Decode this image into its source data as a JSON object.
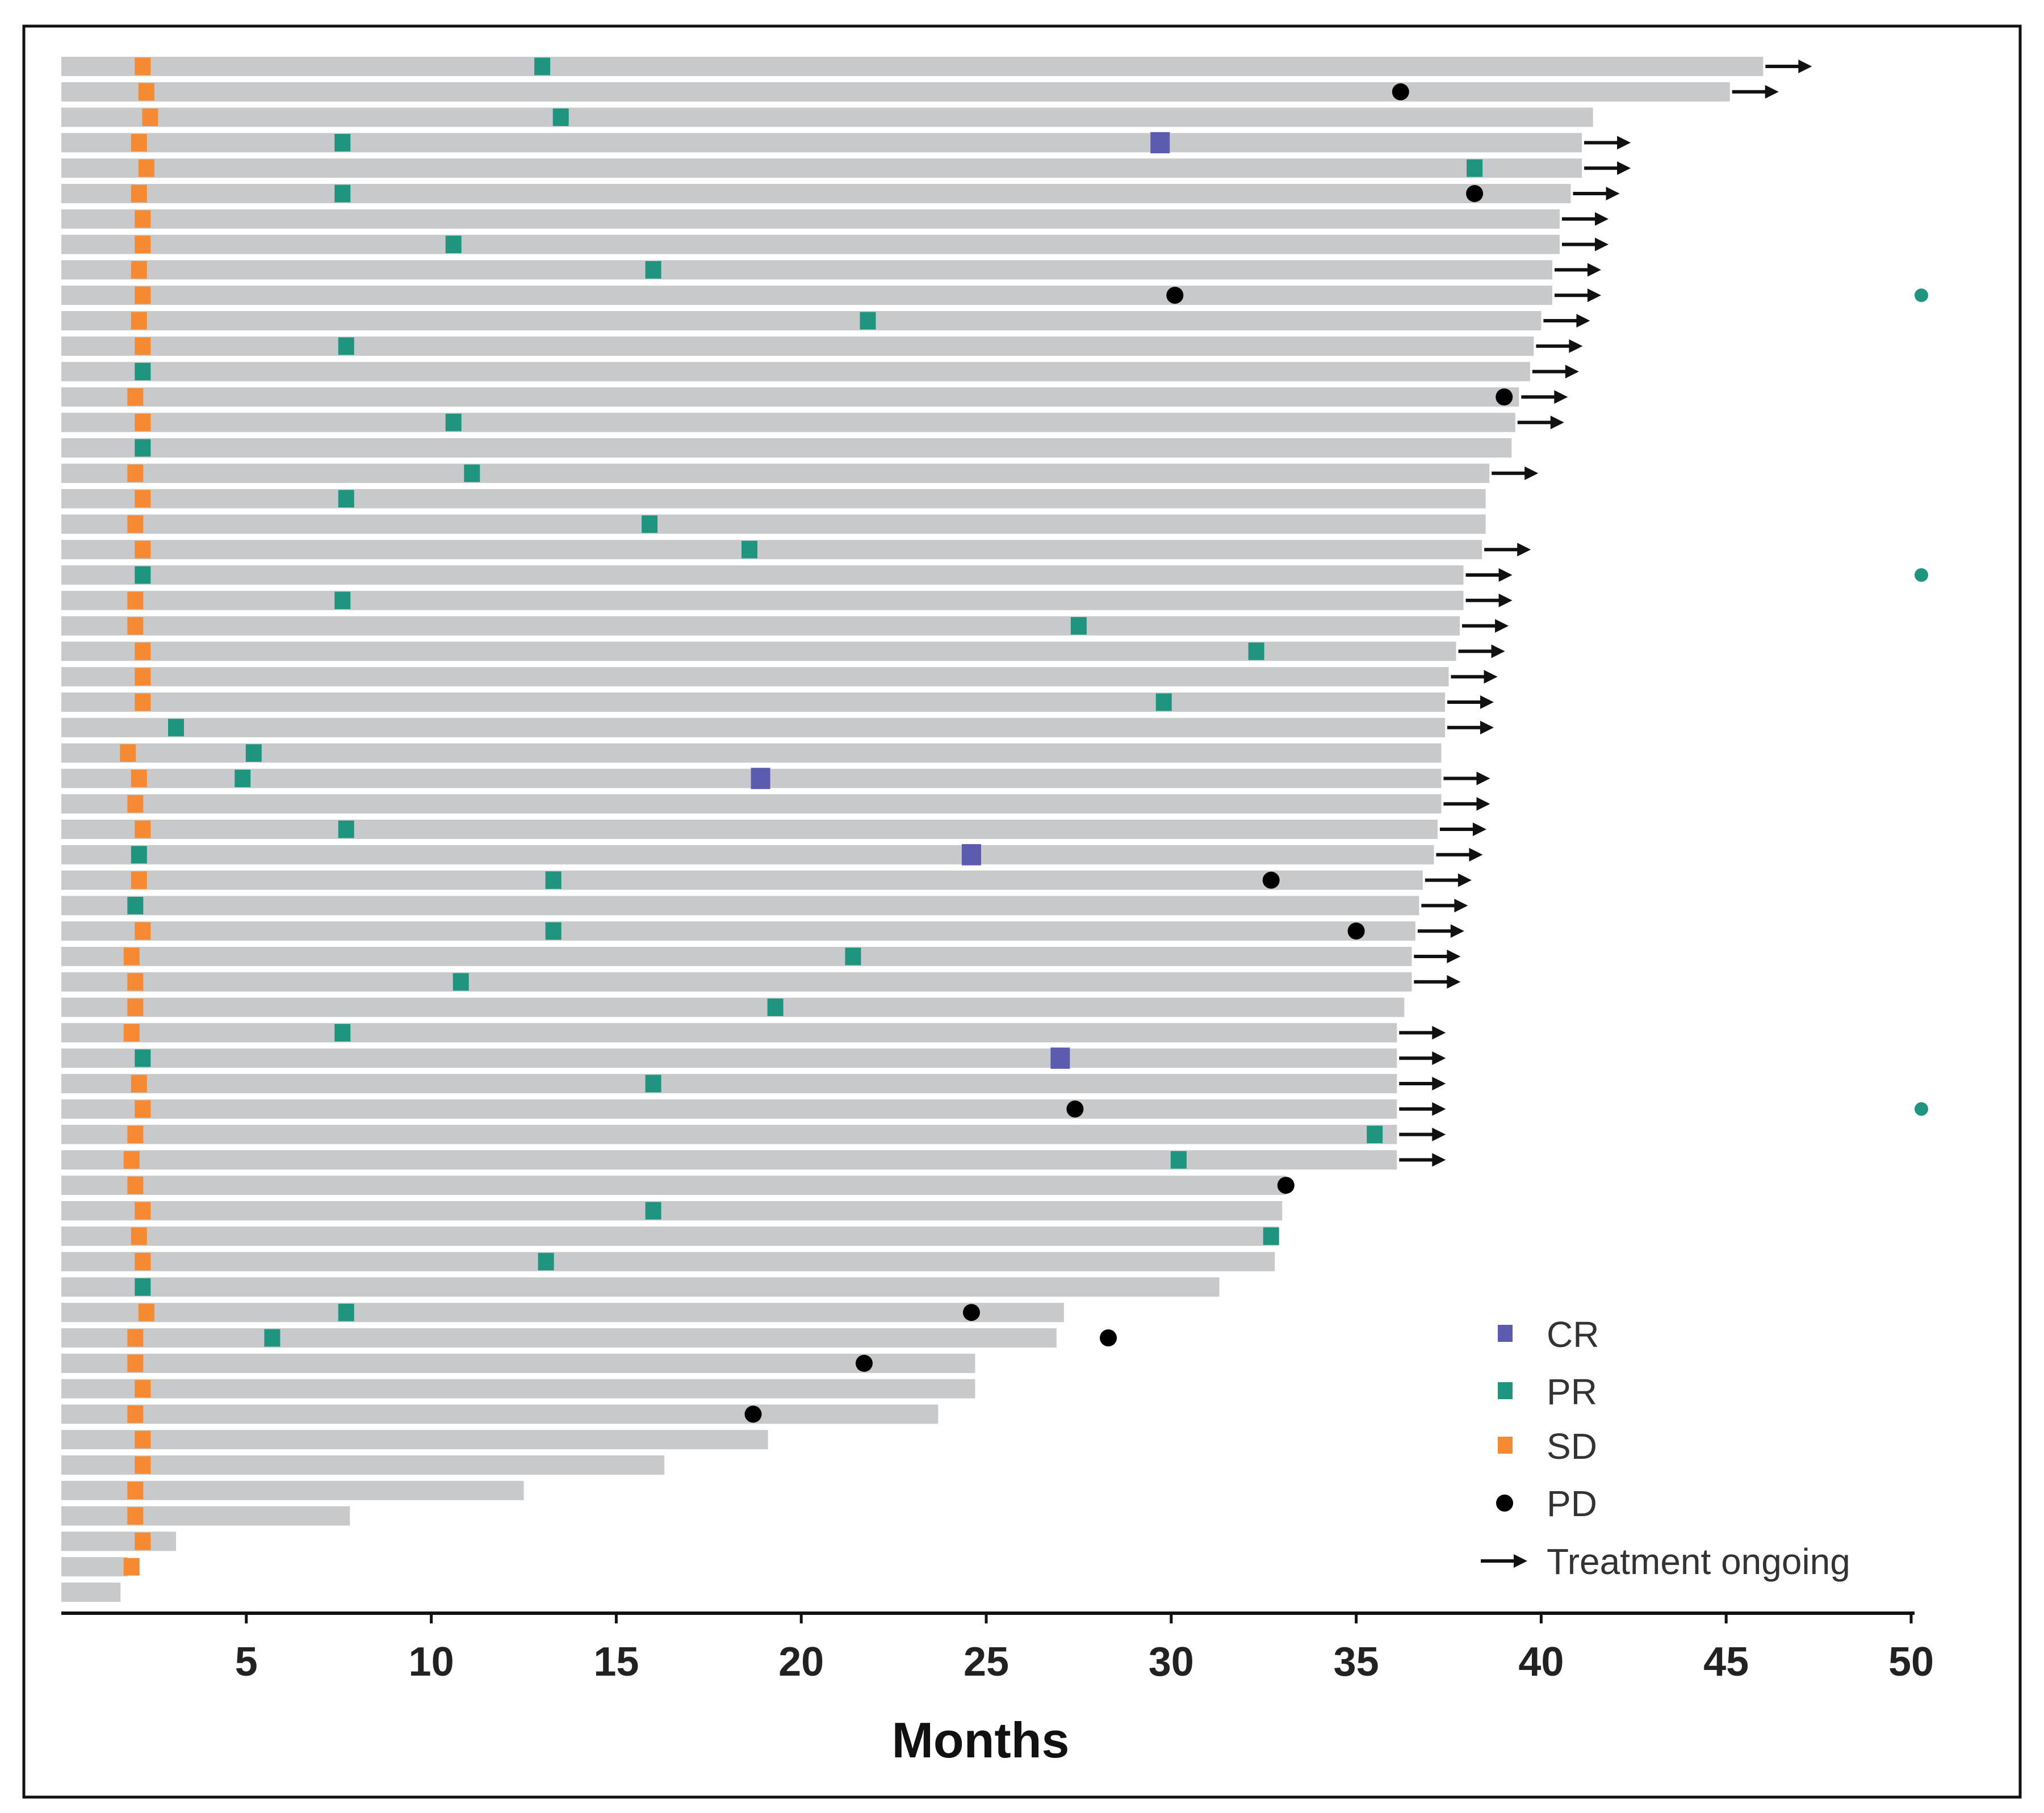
{
  "chart_data": {
    "type": "swimmer",
    "title": "",
    "xlabel": "Months",
    "ylabel": "",
    "xlim": [
      0,
      50
    ],
    "xticks": [
      5,
      10,
      15,
      20,
      25,
      30,
      35,
      40,
      45,
      50
    ],
    "grid": false,
    "legend_placement": "bottom-right",
    "colors": {
      "bar": "#c8c9cb",
      "CR": "#5b5bb0",
      "PR": "#1f9580",
      "SD": "#f58a33",
      "PD": "#000000",
      "arrow": "#111111",
      "marker": "#1f9580"
    },
    "legend": [
      {
        "key": "CR",
        "label": "CR"
      },
      {
        "key": "PR",
        "label": "PR"
      },
      {
        "key": "SD",
        "label": "SD"
      },
      {
        "key": "PD",
        "label": "PD"
      },
      {
        "key": "ongoing",
        "label": "Treatment ongoing"
      }
    ],
    "patients": [
      {
        "end": 46.0,
        "SD": 2.2,
        "PR": 13.0,
        "ongoing": true
      },
      {
        "end": 45.1,
        "SD": 2.3,
        "PD": 36.2,
        "ongoing": true
      },
      {
        "end": 41.4,
        "SD": 2.4,
        "PR": 13.5
      },
      {
        "end": 41.1,
        "SD": 2.1,
        "PR": 7.6,
        "CR": 29.7,
        "ongoing": true
      },
      {
        "end": 41.1,
        "SD": 2.3,
        "PR": 38.2,
        "ongoing": true
      },
      {
        "end": 40.8,
        "SD": 2.1,
        "PR": 7.6,
        "PD": 38.2,
        "ongoing": true
      },
      {
        "end": 40.5,
        "SD": 2.2,
        "ongoing": true
      },
      {
        "end": 40.5,
        "SD": 2.2,
        "PR": 10.6,
        "ongoing": true
      },
      {
        "end": 40.3,
        "SD": 2.1,
        "PR": 16.0,
        "ongoing": true
      },
      {
        "end": 40.3,
        "SD": 2.2,
        "PD": 30.1,
        "ongoing": true,
        "marker": true
      },
      {
        "end": 40.0,
        "SD": 2.1,
        "PR": 21.8,
        "ongoing": true
      },
      {
        "end": 39.8,
        "SD": 2.2,
        "PR": 7.7,
        "ongoing": true
      },
      {
        "end": 39.7,
        "PR": 2.2,
        "ongoing": true
      },
      {
        "end": 39.4,
        "SD": 2.0,
        "PD": 39.0,
        "ongoing": true
      },
      {
        "end": 39.3,
        "SD": 2.2,
        "PR": 10.6,
        "ongoing": true
      },
      {
        "end": 39.2,
        "PR": 2.2
      },
      {
        "end": 38.6,
        "SD": 2.0,
        "PR": 11.1,
        "ongoing": true
      },
      {
        "end": 38.5,
        "SD": 2.2,
        "PR": 7.7
      },
      {
        "end": 38.5,
        "SD": 2.0,
        "PR": 15.9
      },
      {
        "end": 38.4,
        "SD": 2.2,
        "PR": 18.6,
        "ongoing": true
      },
      {
        "end": 37.9,
        "PR": 2.2,
        "ongoing": true,
        "marker": true
      },
      {
        "end": 37.9,
        "SD": 2.0,
        "PR": 7.6,
        "ongoing": true
      },
      {
        "end": 37.8,
        "SD": 2.0,
        "PR": 27.5,
        "ongoing": true
      },
      {
        "end": 37.7,
        "SD": 2.2,
        "PR": 32.3,
        "ongoing": true
      },
      {
        "end": 37.5,
        "SD": 2.2,
        "ongoing": true
      },
      {
        "end": 37.4,
        "SD": 2.2,
        "PR": 29.8,
        "ongoing": true
      },
      {
        "end": 37.4,
        "PR": 3.1,
        "ongoing": true
      },
      {
        "end": 37.3,
        "SD": 1.8,
        "PR": 5.2
      },
      {
        "end": 37.3,
        "SD": 2.1,
        "PR": 4.9,
        "CR": 18.9,
        "ongoing": true
      },
      {
        "end": 37.3,
        "SD": 2.0,
        "ongoing": true
      },
      {
        "end": 37.2,
        "SD": 2.2,
        "PR": 7.7,
        "ongoing": true
      },
      {
        "end": 37.1,
        "PR": 2.1,
        "CR": 24.6,
        "ongoing": true
      },
      {
        "end": 36.8,
        "SD": 2.1,
        "PR": 13.3,
        "PD": 32.7,
        "ongoing": true
      },
      {
        "end": 36.7,
        "PR": 2.0,
        "ongoing": true
      },
      {
        "end": 36.6,
        "SD": 2.2,
        "PR": 13.3,
        "PD": 35.0,
        "ongoing": true
      },
      {
        "end": 36.5,
        "SD": 1.9,
        "PR": 21.4,
        "ongoing": true
      },
      {
        "end": 36.5,
        "SD": 2.0,
        "PR": 10.8,
        "ongoing": true
      },
      {
        "end": 36.3,
        "SD": 2.0,
        "PR": 19.3
      },
      {
        "end": 36.1,
        "SD": 1.9,
        "PR": 7.6,
        "ongoing": true
      },
      {
        "end": 36.1,
        "PR": 2.2,
        "CR": 27.0,
        "ongoing": true
      },
      {
        "end": 36.1,
        "SD": 2.1,
        "PR": 16.0,
        "ongoing": true
      },
      {
        "end": 36.1,
        "SD": 2.2,
        "PD": 27.4,
        "ongoing": true,
        "marker": true
      },
      {
        "end": 36.1,
        "SD": 2.0,
        "PR": 35.5,
        "ongoing": true
      },
      {
        "end": 36.1,
        "SD": 1.9,
        "PR": 30.2,
        "ongoing": true
      },
      {
        "end": 33.1,
        "SD": 2.0,
        "PD": 33.1
      },
      {
        "end": 33.0,
        "SD": 2.2,
        "PR": 16.0
      },
      {
        "end": 32.9,
        "SD": 2.1,
        "PR": 32.7
      },
      {
        "end": 32.8,
        "SD": 2.2,
        "PR": 13.1
      },
      {
        "end": 31.3,
        "PR": 2.2
      },
      {
        "end": 27.1,
        "SD": 2.3,
        "PR": 7.7,
        "PD": 24.6
      },
      {
        "end": 26.9,
        "SD": 2.0,
        "PR": 5.7,
        "PD": 28.3
      },
      {
        "end": 24.7,
        "SD": 2.0,
        "PD": 21.7
      },
      {
        "end": 24.7,
        "SD": 2.2
      },
      {
        "end": 23.7,
        "SD": 2.0,
        "PD": 18.7
      },
      {
        "end": 19.1,
        "SD": 2.2
      },
      {
        "end": 16.3,
        "SD": 2.2
      },
      {
        "end": 12.5,
        "SD": 2.0
      },
      {
        "end": 7.8,
        "SD": 2.0
      },
      {
        "end": 3.1,
        "SD": 2.2
      },
      {
        "end": 1.8,
        "SD": 1.9
      },
      {
        "end": 1.6
      }
    ]
  }
}
